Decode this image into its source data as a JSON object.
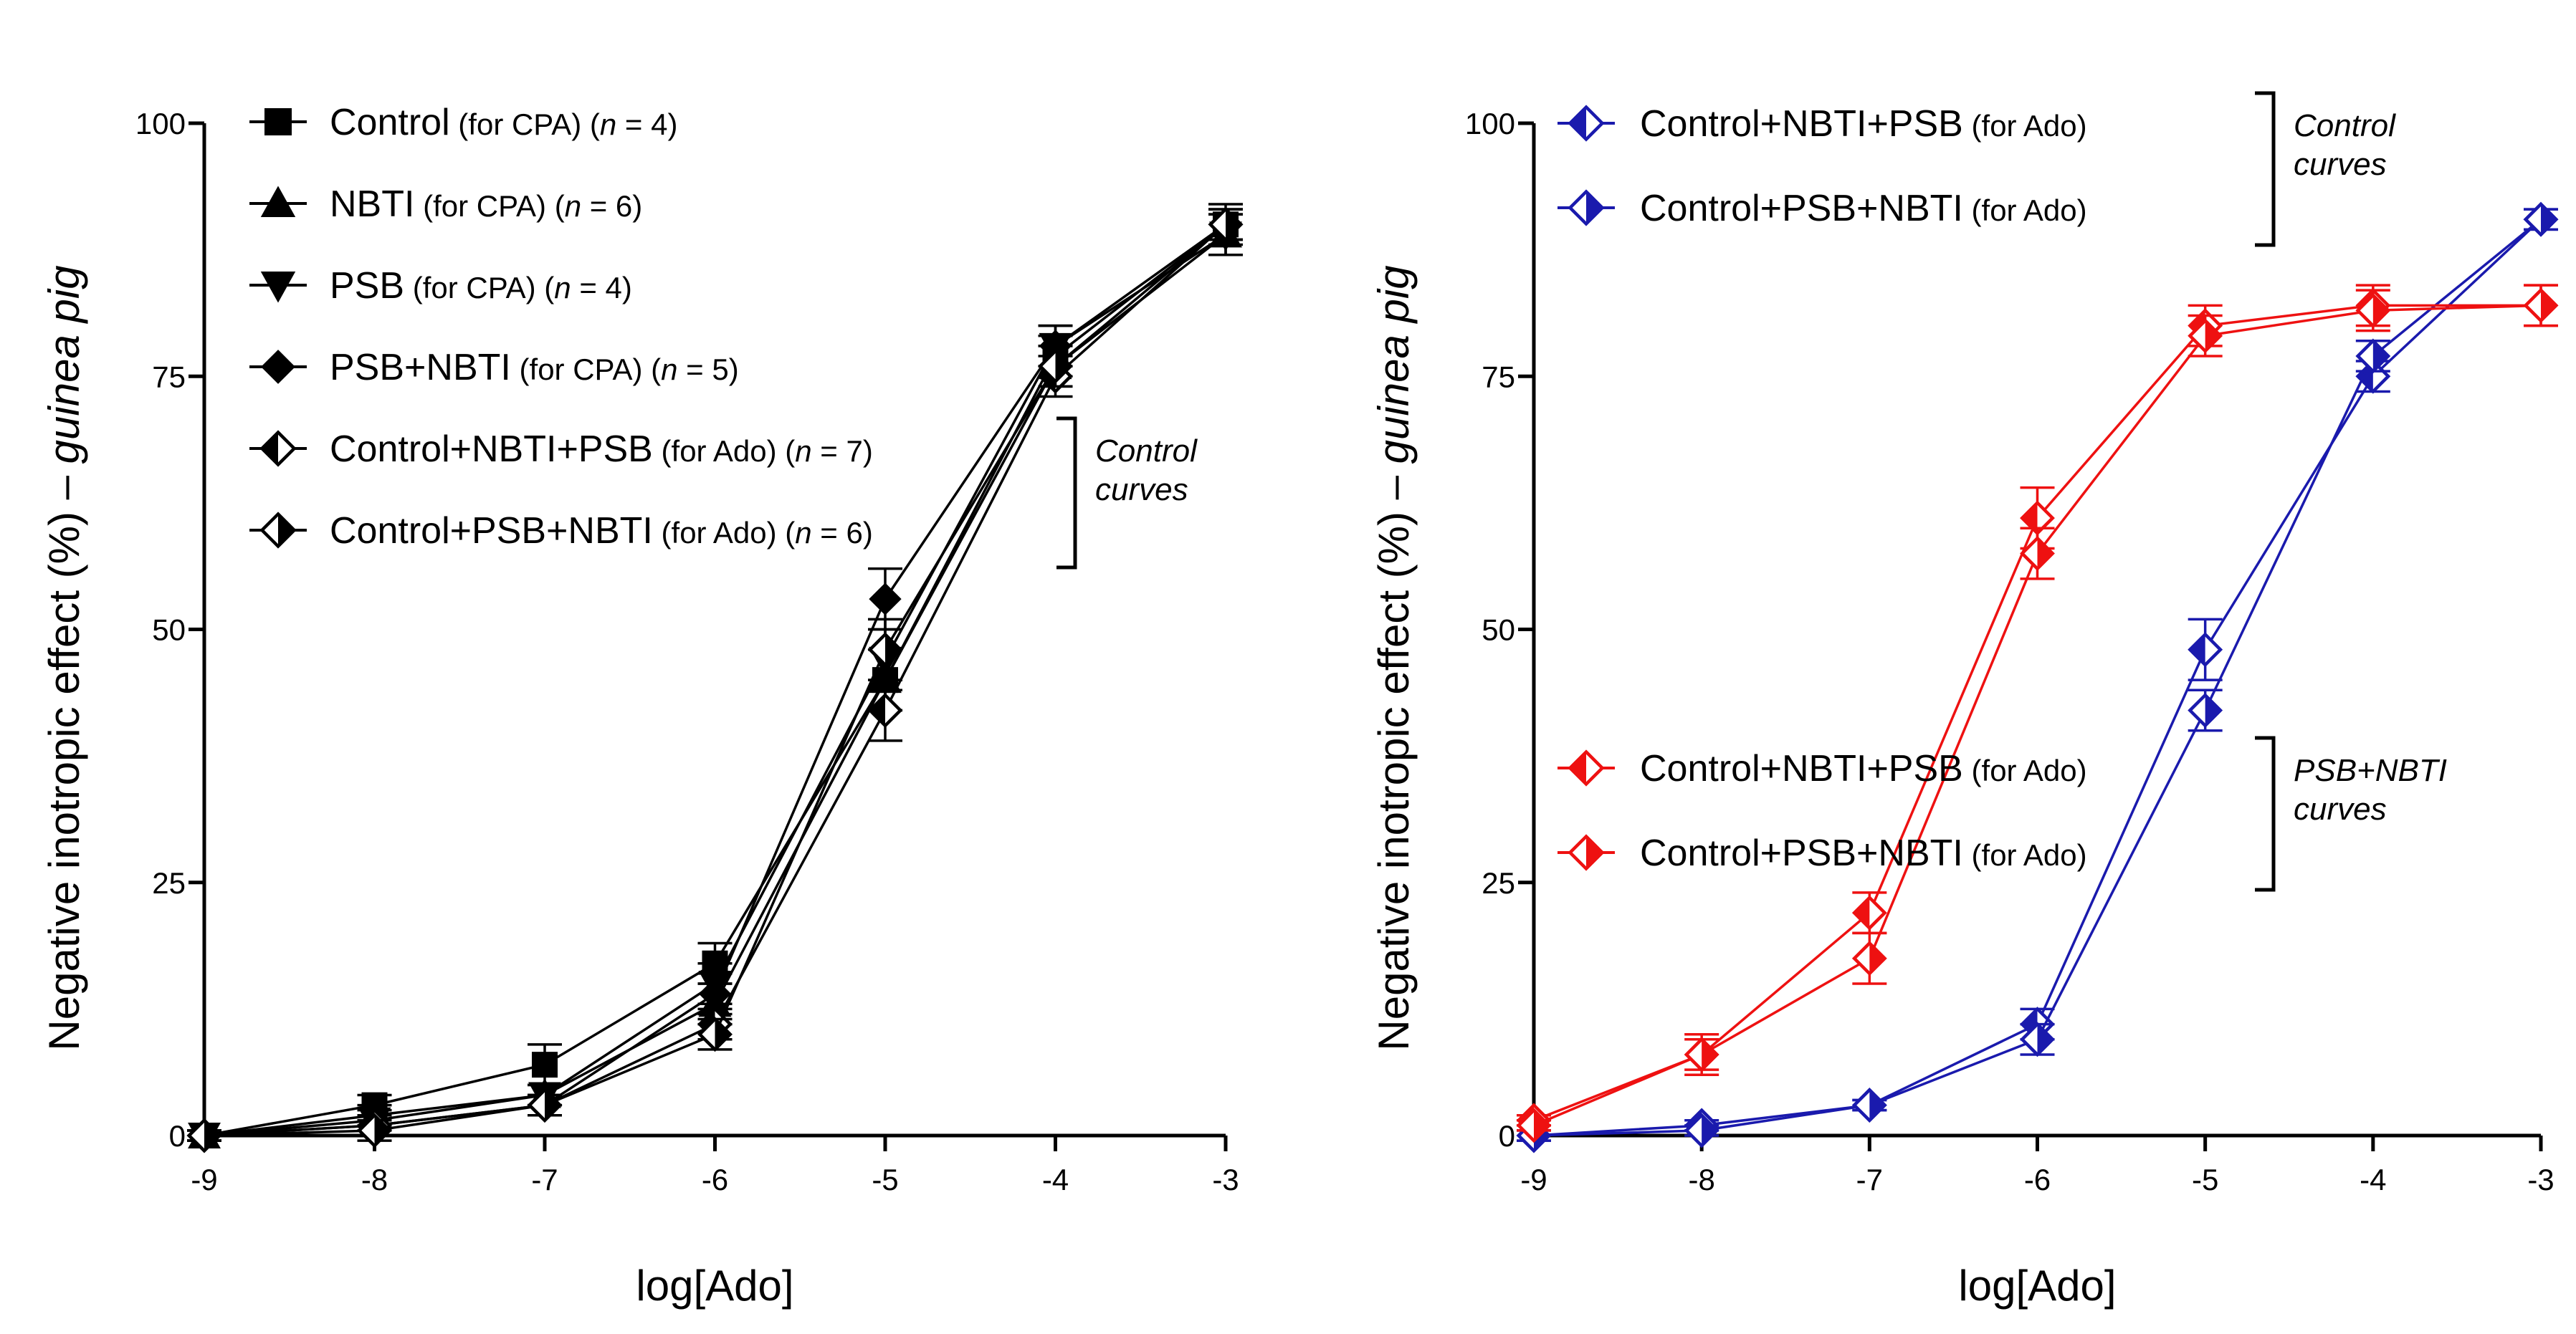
{
  "chart_data": [
    {
      "type": "line",
      "panel": "left",
      "ylabel": "Negative inotropic effect (%) – ",
      "ylabel_italic": "guinea pig",
      "xlabel": "log[Ado]",
      "xlim": [
        -9,
        -3
      ],
      "ylim": [
        0,
        100
      ],
      "x_ticks": [
        "-9",
        "-8",
        "-7",
        "-6",
        "-5",
        "-4",
        "-3"
      ],
      "y_ticks": [
        "0",
        "25",
        "50",
        "75",
        "100"
      ],
      "x": [
        -9,
        -8,
        -7,
        -6,
        -5,
        -4,
        -3
      ],
      "series": [
        {
          "name": "Control",
          "suffix": " (for CPA) (",
          "n_label": "n",
          "n_value": " = 4)",
          "marker": "square",
          "color": "#000000",
          "values": [
            0,
            3,
            7,
            17,
            45,
            77,
            90
          ],
          "errors": [
            0.5,
            1,
            2,
            2,
            3,
            2,
            2
          ]
        },
        {
          "name": "NBTI",
          "suffix": " (for CPA) (",
          "n_label": "n",
          "n_value": " = 6)",
          "marker": "triangle-up",
          "color": "#000000",
          "values": [
            0,
            2,
            4,
            13,
            45,
            76,
            89
          ],
          "errors": [
            0.5,
            1,
            1,
            2,
            3,
            2,
            2
          ]
        },
        {
          "name": "PSB",
          "suffix": " (for CPA) (",
          "n_label": "n",
          "n_value": " = 4)",
          "marker": "triangle-down",
          "color": "#000000",
          "values": [
            0,
            1.5,
            4,
            15,
            47,
            78,
            89
          ],
          "errors": [
            0.5,
            1,
            1,
            2,
            3,
            2,
            2
          ]
        },
        {
          "name": "PSB+NBTI",
          "suffix": " (for CPA) (",
          "n_label": "n",
          "n_value": " = 5)",
          "marker": "diamond",
          "color": "#000000",
          "values": [
            0,
            1,
            3,
            14,
            53,
            78,
            90
          ],
          "errors": [
            0.5,
            1,
            1,
            2,
            3,
            2,
            1.5
          ]
        },
        {
          "name": "Control+NBTI+PSB",
          "suffix": " (for Ado) (",
          "n_label": "n",
          "n_value": " = 7)",
          "marker": "diamond-half-left",
          "color": "#000000",
          "values": [
            0,
            1,
            3,
            11,
            42,
            75,
            90
          ],
          "errors": [
            0.5,
            1,
            1,
            1.5,
            3,
            2,
            1.5
          ]
        },
        {
          "name": "Control+PSB+NBTI",
          "suffix": " (for Ado) (",
          "n_label": "n",
          "n_value": " = 6)",
          "marker": "diamond-half-right",
          "color": "#000000",
          "values": [
            0,
            0.5,
            3,
            10,
            48,
            76,
            90
          ],
          "errors": [
            0.5,
            1,
            1,
            1.5,
            3,
            2,
            1.5
          ]
        }
      ],
      "brackets": [
        {
          "lines": [
            "Control",
            "curves"
          ],
          "spans_series": [
            4,
            5
          ]
        }
      ]
    },
    {
      "type": "line",
      "panel": "right",
      "ylabel": "Negative inotropic effect (%) – ",
      "ylabel_italic": "guinea pig",
      "xlabel": "log[Ado]",
      "xlim": [
        -9,
        -3
      ],
      "ylim": [
        0,
        100
      ],
      "x_ticks": [
        "-9",
        "-8",
        "-7",
        "-6",
        "-5",
        "-4",
        "-3"
      ],
      "y_ticks": [
        "0",
        "25",
        "50",
        "75",
        "100"
      ],
      "x": [
        -9,
        -8,
        -7,
        -6,
        -5,
        -4,
        -3
      ],
      "series": [
        {
          "name": "Control+NBTI+PSB",
          "suffix": " (for Ado)",
          "marker": "diamond-half-left",
          "color": "#1a1aad",
          "values": [
            0,
            1,
            3,
            11,
            48,
            75,
            90.5
          ],
          "errors": [
            0.5,
            0.5,
            0.5,
            1.5,
            3,
            1.5,
            1
          ]
        },
        {
          "name": "Control+PSB+NBTI",
          "suffix": " (for Ado)",
          "marker": "diamond-half-right",
          "color": "#1a1aad",
          "values": [
            0,
            0.5,
            3,
            9.5,
            42,
            77,
            90.5
          ],
          "errors": [
            0.5,
            0.5,
            0.5,
            1.5,
            2,
            1.5,
            1
          ]
        },
        {
          "name": "Control+NBTI+PSB",
          "suffix": " (for Ado)",
          "marker": "diamond-half-left",
          "color": "#ee1111",
          "values": [
            1.5,
            8,
            22,
            61,
            80,
            82,
            82
          ],
          "errors": [
            0.5,
            1.5,
            2,
            3,
            2,
            2,
            2
          ]
        },
        {
          "name": "Control+PSB+NBTI",
          "suffix": " (for Ado)",
          "marker": "diamond-half-right",
          "color": "#ee1111",
          "values": [
            1,
            8,
            17.5,
            57.5,
            79,
            81.5,
            82
          ],
          "errors": [
            0.5,
            2,
            2.5,
            2.5,
            2,
            2,
            2
          ]
        }
      ],
      "brackets": [
        {
          "lines": [
            "Control",
            "curves"
          ],
          "spans_series": [
            0,
            1
          ]
        },
        {
          "lines": [
            "PSB+NBTI",
            "curves"
          ],
          "spans_series": [
            2,
            3
          ]
        }
      ]
    }
  ]
}
